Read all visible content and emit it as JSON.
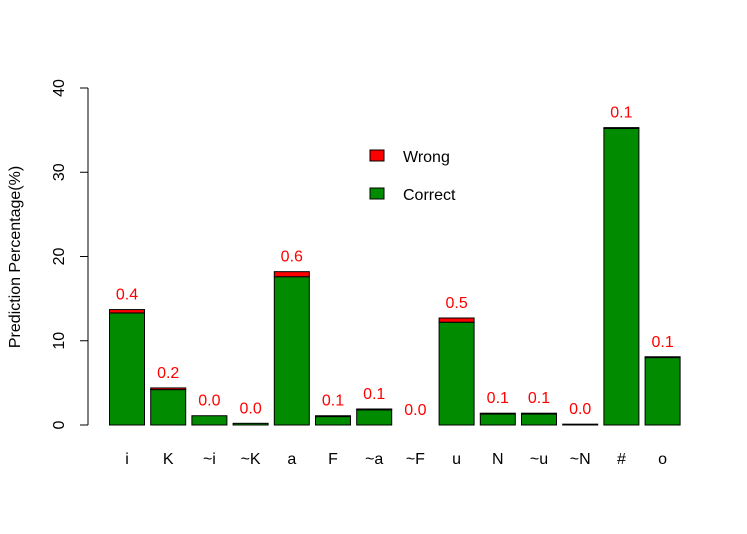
{
  "chart_data": {
    "type": "bar",
    "stacked": true,
    "categories": [
      "i",
      "K",
      "~i",
      "~K",
      "a",
      "F",
      "~a",
      "~F",
      "u",
      "N",
      "~u",
      "~N",
      "#",
      "o"
    ],
    "series": [
      {
        "name": "Correct",
        "color": "#008B00",
        "values": [
          13.3,
          4.2,
          1.1,
          0.2,
          17.6,
          1.0,
          1.8,
          0.0,
          12.2,
          1.3,
          1.3,
          0.1,
          35.2,
          8.0
        ]
      },
      {
        "name": "Wrong",
        "color": "#FF0000",
        "values": [
          0.4,
          0.2,
          0.0,
          0.0,
          0.6,
          0.1,
          0.1,
          0.0,
          0.5,
          0.1,
          0.1,
          0.0,
          0.1,
          0.1
        ]
      }
    ],
    "data_labels": [
      "0.4",
      "0.2",
      "0.0",
      "0.0",
      "0.6",
      "0.1",
      "0.1",
      "0.0",
      "0.5",
      "0.1",
      "0.1",
      "0.0",
      "0.1",
      "0.1"
    ],
    "data_label_color": "#FF0000",
    "ylabel": "Prediction Percentage(%)",
    "ylim": [
      0,
      40
    ],
    "yticks": [
      0,
      10,
      20,
      30,
      40
    ],
    "grid": false,
    "legend": {
      "position": "top-center",
      "entries": [
        {
          "label": "Wrong",
          "color": "#FF0000"
        },
        {
          "label": "Correct",
          "color": "#008B00"
        }
      ]
    }
  }
}
